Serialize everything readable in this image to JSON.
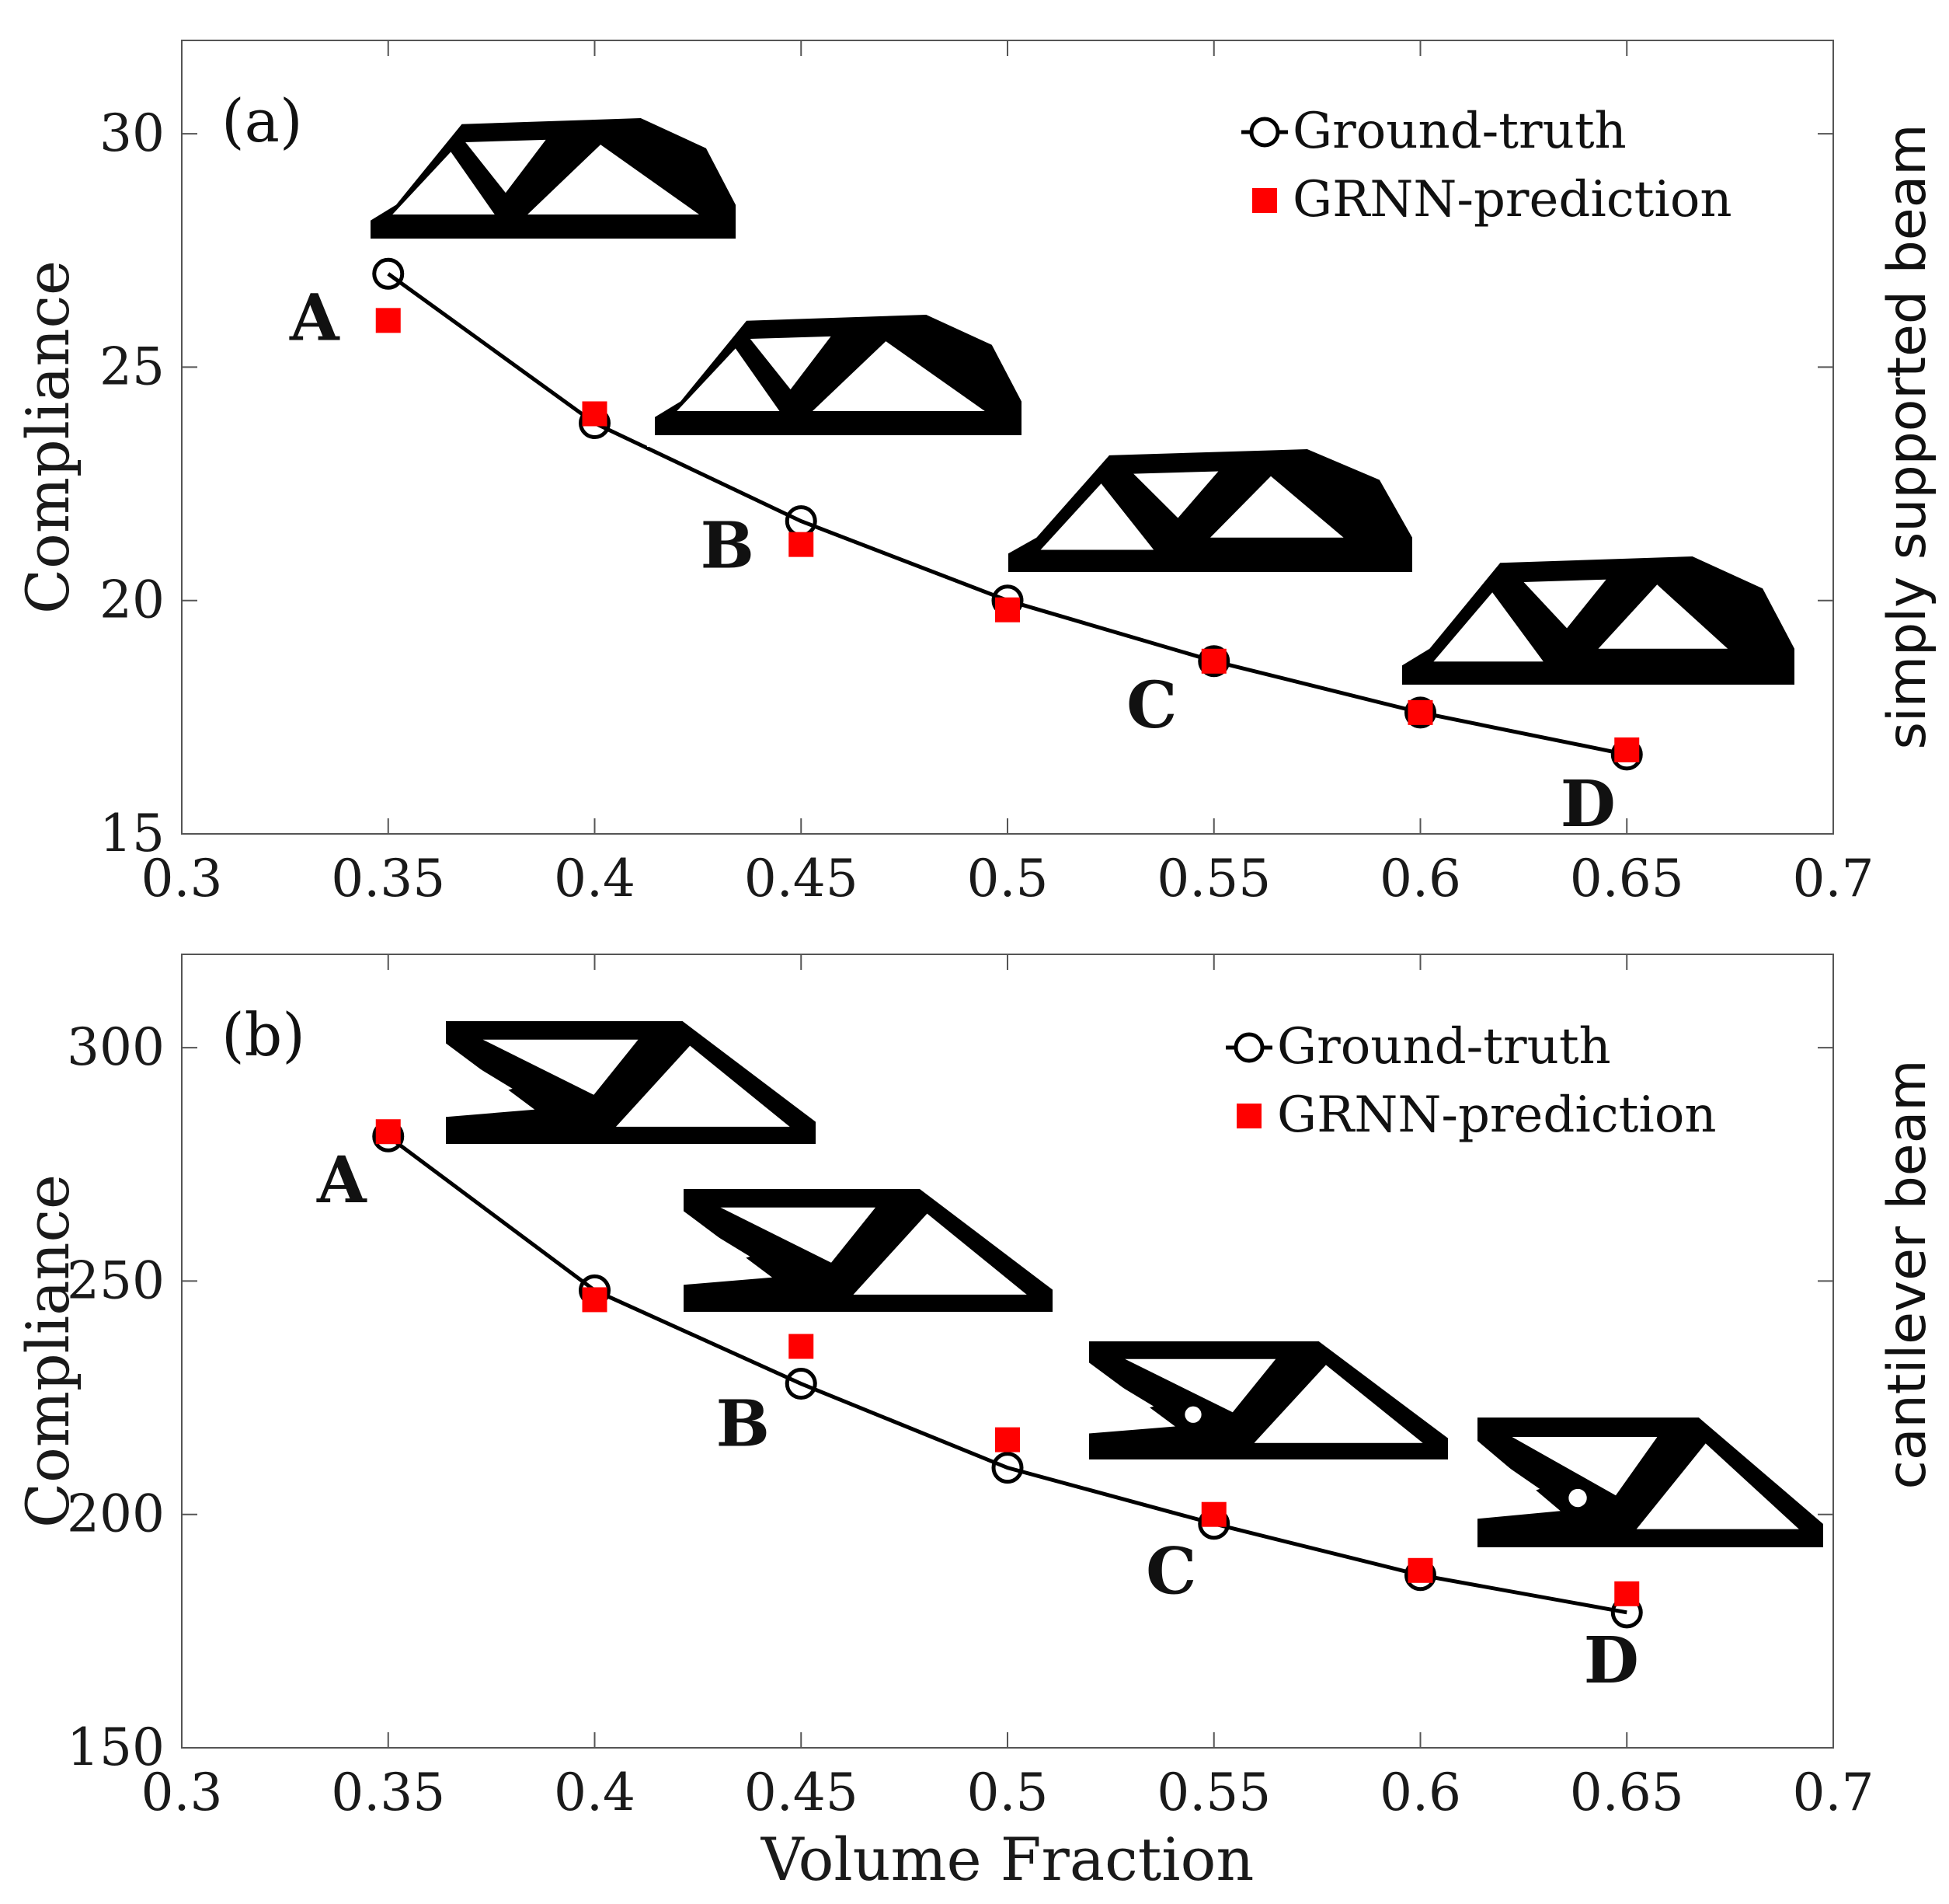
{
  "colors": {
    "ground_truth": "#000000",
    "prediction": "#ff0000",
    "axes": "#555555",
    "structure": "#000000"
  },
  "chart_data": [
    {
      "type": "line",
      "panel_label": "(a)",
      "side_title": "simply supported beam",
      "xlabel": "",
      "ylabel": "Compliance",
      "xlim": [
        0.3,
        0.7
      ],
      "ylim": [
        15,
        32
      ],
      "xticks": [
        0.3,
        0.35,
        0.4,
        0.45,
        0.5,
        0.55,
        0.6,
        0.65,
        0.7
      ],
      "xtick_labels": [
        "0.3",
        "0.35",
        "0.4",
        "0.45",
        "0.5",
        "0.55",
        "0.6",
        "0.65",
        "0.7"
      ],
      "yticks": [
        15,
        20,
        25,
        30
      ],
      "ytick_labels": [
        "15",
        "20",
        "25",
        "30"
      ],
      "x": [
        0.35,
        0.4,
        0.45,
        0.5,
        0.55,
        0.6,
        0.65
      ],
      "series": [
        {
          "name": "Ground-truth",
          "marker": "circle",
          "line": true,
          "values": [
            27.0,
            23.8,
            21.7,
            20.0,
            18.7,
            17.6,
            16.7
          ]
        },
        {
          "name": "GRNN-prediction",
          "marker": "square",
          "line": false,
          "values": [
            26.0,
            24.0,
            21.2,
            19.8,
            18.7,
            17.6,
            16.8
          ]
        }
      ],
      "point_labels": [
        {
          "text": "A",
          "x": 0.35
        },
        {
          "text": "B",
          "x": 0.45
        },
        {
          "text": "C",
          "x": 0.55
        },
        {
          "text": "D",
          "x": 0.65
        }
      ],
      "legend_position": "top-right"
    },
    {
      "type": "line",
      "panel_label": "(b)",
      "side_title": "cantilever beam",
      "xlabel": "Volume Fraction",
      "ylabel": "Compliance",
      "xlim": [
        0.3,
        0.7
      ],
      "ylim": [
        150,
        320
      ],
      "xticks": [
        0.3,
        0.35,
        0.4,
        0.45,
        0.5,
        0.55,
        0.6,
        0.65,
        0.7
      ],
      "xtick_labels": [
        "0.3",
        "0.35",
        "0.4",
        "0.45",
        "0.5",
        "0.55",
        "0.6",
        "0.65",
        "0.7"
      ],
      "yticks": [
        150,
        200,
        250,
        300
      ],
      "ytick_labels": [
        "150",
        "200",
        "250",
        "300"
      ],
      "x": [
        0.35,
        0.4,
        0.45,
        0.5,
        0.55,
        0.6,
        0.65
      ],
      "series": [
        {
          "name": "Ground-truth",
          "marker": "circle",
          "line": true,
          "values": [
            281,
            248,
            228,
            210,
            198,
            187,
            179
          ]
        },
        {
          "name": "GRNN-prediction",
          "marker": "square",
          "line": false,
          "values": [
            282,
            246,
            236,
            216,
            200,
            188,
            183
          ]
        }
      ],
      "point_labels": [
        {
          "text": "A",
          "x": 0.35
        },
        {
          "text": "B",
          "x": 0.45
        },
        {
          "text": "C",
          "x": 0.55
        },
        {
          "text": "D",
          "x": 0.65
        }
      ],
      "legend_position": "top-right"
    }
  ]
}
